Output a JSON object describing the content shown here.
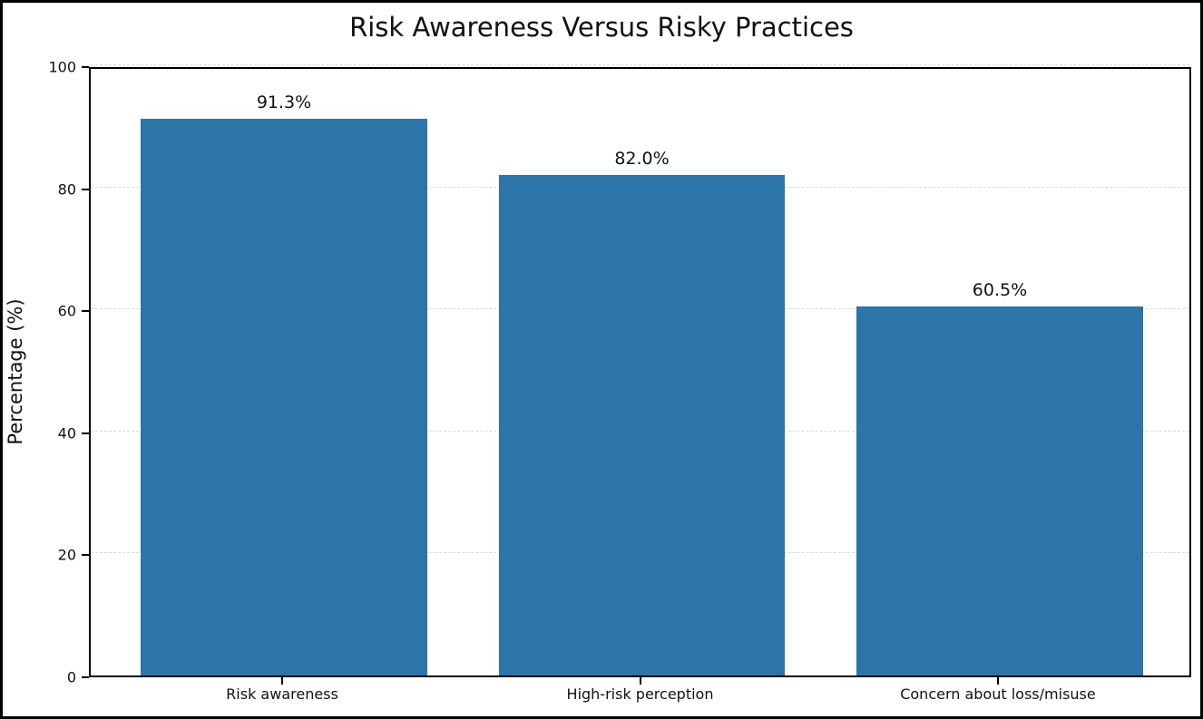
{
  "figure": {
    "title": "Risk Awareness Versus Risky Practices"
  },
  "chart_data": {
    "type": "bar",
    "title": "Risk Awareness Versus Risky Practices",
    "xlabel": "",
    "ylabel": "Percentage (%)",
    "categories": [
      "Risk awareness",
      "High-risk perception",
      "Concern about loss/misuse"
    ],
    "values": [
      91.3,
      82.0,
      60.5
    ],
    "value_labels": [
      "91.3%",
      "82.0%",
      "60.5%"
    ],
    "yticks": [
      0,
      20,
      40,
      60,
      80,
      100
    ],
    "ylim": [
      0,
      100
    ],
    "bar_color": "#2d74a8",
    "grid": "horizontal-dashed",
    "gridline_color": "#d9d9d9",
    "legend_position": "none",
    "figure_border_color": "#000000"
  }
}
